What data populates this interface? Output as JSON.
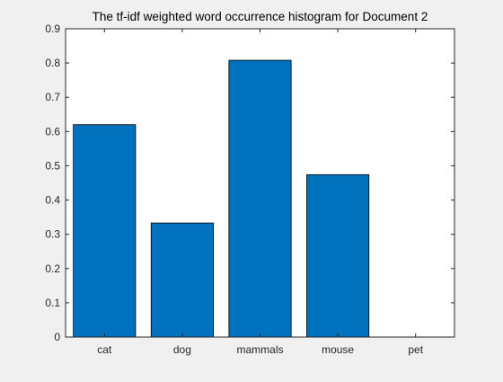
{
  "chart_data": {
    "type": "bar",
    "title": "The tf-idf weighted word occurrence histogram for Document 2",
    "xlabel": "",
    "ylabel": "",
    "categories": [
      "cat",
      "dog",
      "mammals",
      "mouse",
      "pet"
    ],
    "values": [
      0.62,
      0.333,
      0.808,
      0.474,
      0
    ],
    "ylim": [
      0,
      0.9
    ],
    "yticks": [
      "0",
      "0.1",
      "0.2",
      "0.3",
      "0.4",
      "0.5",
      "0.6",
      "0.7",
      "0.8",
      "0.9"
    ],
    "bar_color": "#0072BD",
    "bar_edge_color": "#000000",
    "grid": false,
    "legend": false
  }
}
